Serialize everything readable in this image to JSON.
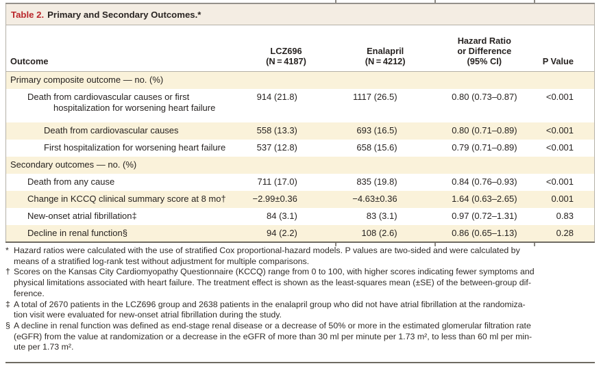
{
  "page": {
    "title": {
      "label": "Table 2.",
      "text": "Primary and Secondary Outcomes.*"
    }
  },
  "table": {
    "header": {
      "outcome_label": "Outcome",
      "columns": [
        {
          "lines": [
            "LCZ696",
            "(N = 4187)"
          ]
        },
        {
          "lines": [
            "Enalapril",
            "(N = 4212)"
          ]
        },
        {
          "lines": [
            "Hazard Ratio",
            "or Difference",
            "(95% CI)"
          ]
        },
        {
          "lines": [
            "P Value"
          ]
        }
      ]
    },
    "rows": [
      {
        "type": "section",
        "indent": 0,
        "label_lines": [
          "Primary composite outcome — no. (%)"
        ],
        "values": [
          "",
          "",
          "",
          ""
        ]
      },
      {
        "type": "data",
        "indent": 1,
        "label_lines": [
          "Death from cardiovascular causes or first",
          "hospitalization for worsening heart failure"
        ],
        "values": [
          "914 (21.8)",
          "1117 (26.5)",
          "0.80 (0.73–0.87)",
          "<0.001"
        ]
      },
      {
        "type": "data",
        "indent": 2,
        "label_lines": [
          "Death from cardiovascular causes"
        ],
        "values": [
          "558 (13.3)",
          "693 (16.5)",
          "0.80 (0.71–0.89)",
          "<0.001"
        ]
      },
      {
        "type": "data",
        "indent": 2,
        "label_lines": [
          "First hospitalization for worsening heart failure"
        ],
        "values": [
          "537 (12.8)",
          "658 (15.6)",
          "0.79 (0.71–0.89)",
          "<0.001"
        ]
      },
      {
        "type": "section",
        "indent": 0,
        "label_lines": [
          "Secondary outcomes — no. (%)"
        ],
        "values": [
          "",
          "",
          "",
          ""
        ]
      },
      {
        "type": "data",
        "indent": 1,
        "label_lines": [
          "Death from any cause"
        ],
        "values": [
          "711 (17.0)",
          "835 (19.8)",
          "0.84 (0.76–0.93)",
          "<0.001"
        ]
      },
      {
        "type": "data",
        "indent": 1,
        "label_lines": [
          "Change in KCCQ clinical summary score at 8 mo†"
        ],
        "values": [
          "−2.99±0.36",
          "−4.63±0.36",
          "1.64 (0.63–2.65)",
          "0.001"
        ]
      },
      {
        "type": "data",
        "indent": 1,
        "label_lines": [
          "New-onset atrial fibrillation‡"
        ],
        "values": [
          "84 (3.1)",
          "83 (3.1)",
          "0.97 (0.72–1.31)",
          "0.83"
        ]
      },
      {
        "type": "data",
        "indent": 1,
        "label_lines": [
          "Decline in renal function§"
        ],
        "values": [
          "94 (2.2)",
          "108 (2.6)",
          "0.86 (0.65–1.13)",
          "0.28"
        ]
      }
    ]
  },
  "footnotes": [
    {
      "marker": "*",
      "lines": [
        "Hazard ratios were calculated with the use of stratified Cox proportional-hazard models. P values are two-sided and were calculated by",
        "means of a stratified log-rank test without adjustment for multiple comparisons."
      ]
    },
    {
      "marker": "†",
      "lines": [
        "Scores on the Kansas City Cardiomyopathy Questionnaire (KCCQ) range from 0 to 100, with higher scores indicating fewer symptoms and",
        "physical limitations associated with heart failure. The treatment effect is shown as the least-squares mean (±SE) of the between-group dif-",
        "ference."
      ]
    },
    {
      "marker": "‡",
      "lines": [
        "A total of 2670 patients in the LCZ696 group and 2638 patients in the enalapril group who did not have atrial fibrillation at the randomiza-",
        "tion visit were evaluated for new-onset atrial fibrillation during the study."
      ]
    },
    {
      "marker": "§",
      "lines": [
        "A decline in renal function was defined as end-stage renal disease or a decrease of 50% or more in the estimated glomerular filtration rate",
        "(eGFR) from the value at randomization or a decrease in the eGFR of more than 30 ml per minute per 1.73 m², to less than 60 ml per min-",
        "ute per 1.73 m²."
      ]
    }
  ],
  "colors": {
    "accent_red": "#b9262b",
    "row_stripe": "#faf2da",
    "title_bar": "#f4ede3"
  }
}
